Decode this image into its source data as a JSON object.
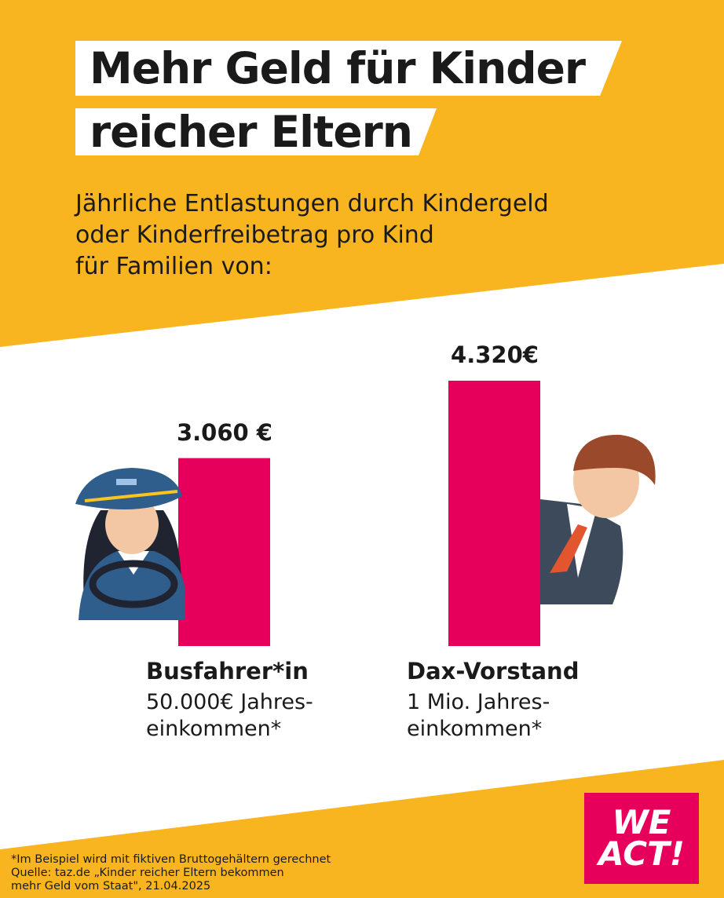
{
  "title": {
    "line1": "Mehr Geld für Kinder",
    "line2": "reicher Eltern"
  },
  "subtitle": {
    "line1": "Jährliche Entlastungen durch Kindergeld",
    "line2": "oder Kinderfreibetrag pro Kind",
    "line3": "für Familien von:"
  },
  "chart_data": {
    "type": "bar",
    "categories": [
      "Busfahrer*in",
      "Dax-Vorstand"
    ],
    "values": [
      3060,
      4320
    ],
    "value_labels": [
      "3.060 €",
      "4.320€"
    ],
    "category_descriptions": [
      {
        "line1": "50.000€ Jahres-",
        "line2": "einkommen*"
      },
      {
        "line1": "1 Mio. Jahres-",
        "line2": "einkommen*"
      }
    ],
    "bar_color": "#e6005c",
    "ylim": [
      0,
      4320
    ],
    "grid": false,
    "legend": "none"
  },
  "colors": {
    "background": "#f9b51f",
    "panel": "#ffffff",
    "accent": "#e6005c"
  },
  "icons": [
    "bus-driver-icon",
    "executive-icon"
  ],
  "logo": {
    "line1": "WE",
    "line2": "ACT!"
  },
  "footnote": {
    "line1": "*Im Beispiel wird mit fiktiven Bruttogehältern gerechnet",
    "line2": "Quelle: taz.de „Kinder reicher Eltern bekommen",
    "line3": "mehr Geld vom Staat\", 21.04.2025"
  }
}
